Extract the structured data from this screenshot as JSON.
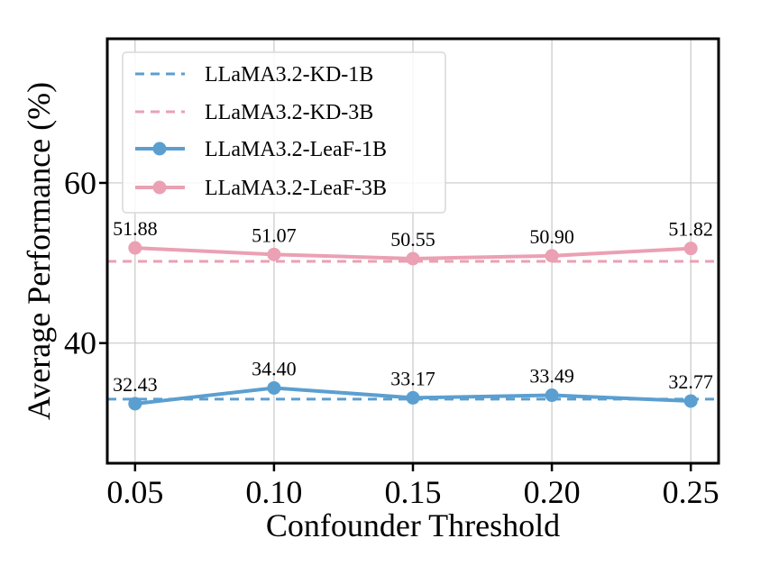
{
  "chart_data": {
    "type": "line",
    "title": "",
    "xlabel": "Confounder Threshold",
    "ylabel": "Average Performance (%)",
    "x": [
      0.05,
      0.1,
      0.15,
      0.2,
      0.25
    ],
    "x_tick_labels": [
      "0.05",
      "0.10",
      "0.15",
      "0.20",
      "0.25"
    ],
    "xlim": [
      0.04,
      0.26
    ],
    "ylim": [
      25,
      78
    ],
    "y_ticks": [
      40,
      60
    ],
    "y_tick_labels": [
      "40",
      "60"
    ],
    "grid": true,
    "legend_position": "top-left",
    "series": [
      {
        "name": "LLaMA3.2-KD-1B",
        "style": "dashed",
        "color": "#5b9fd0",
        "constant": 33.0
      },
      {
        "name": "LLaMA3.2-KD-3B",
        "style": "dashed",
        "color": "#eba0b3",
        "constant": 50.2
      },
      {
        "name": "LLaMA3.2-LeaF-1B",
        "style": "solid-marker",
        "color": "#5b9fd0",
        "values": [
          32.43,
          34.4,
          33.17,
          33.49,
          32.77
        ],
        "labels": [
          "32.43",
          "34.40",
          "33.17",
          "33.49",
          "32.77"
        ]
      },
      {
        "name": "LLaMA3.2-LeaF-3B",
        "style": "solid-marker",
        "color": "#eba0b3",
        "values": [
          51.88,
          51.07,
          50.55,
          50.9,
          51.82
        ],
        "labels": [
          "51.88",
          "51.07",
          "50.55",
          "50.90",
          "51.82"
        ]
      }
    ]
  }
}
